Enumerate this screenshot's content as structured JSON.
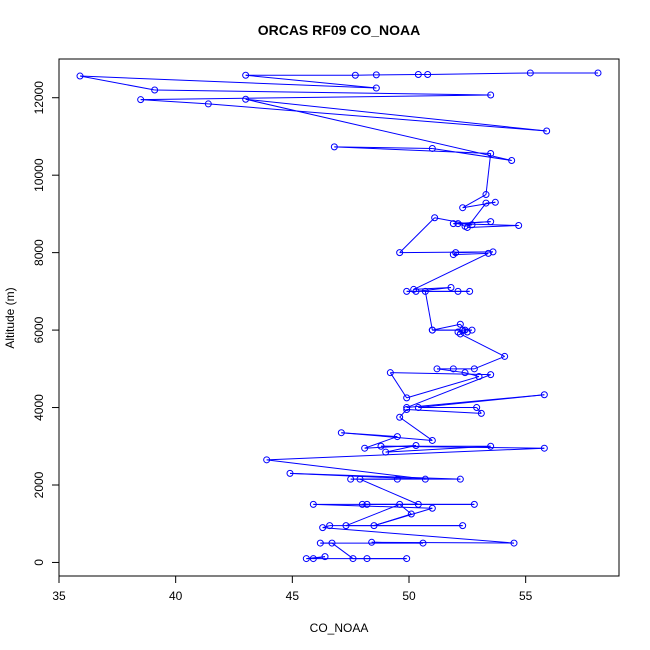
{
  "chart_data": {
    "type": "line",
    "title": "ORCAS RF09 CO_NOAA",
    "xlabel": "CO_NOAA",
    "ylabel": "Altitude (m)",
    "xlim": [
      35,
      59
    ],
    "ylim": [
      -350,
      13000
    ],
    "xticks": [
      35,
      40,
      45,
      50,
      55
    ],
    "yticks": [
      0,
      2000,
      4000,
      6000,
      8000,
      10000,
      12000
    ],
    "grid": false,
    "legend": "none",
    "colors": {
      "series": "#0000ff"
    },
    "series": [
      {
        "marker": "open-circle",
        "x": [
          58.1,
          55.2,
          50.8,
          50.4,
          48.6,
          47.7,
          43.0,
          48.6,
          35.9,
          39.1,
          53.5,
          38.5,
          41.4,
          55.9,
          43.0,
          54.4,
          51.0,
          46.8,
          53.5,
          53.3,
          52.3,
          53.7,
          53.3,
          52.5,
          54.7,
          51.9,
          53.5,
          52.1,
          52.4,
          52.7,
          51.1,
          49.6,
          53.6,
          52.0,
          51.9,
          53.4,
          50.2,
          51.8,
          50.3,
          49.9,
          52.1,
          52.6,
          50.7,
          51.0,
          52.2,
          52.4,
          52.7,
          51.0,
          52.3,
          52.1,
          52.5,
          52.2,
          54.1,
          52.8,
          51.9,
          51.2,
          52.4,
          53.0,
          49.9,
          49.2,
          53.5,
          49.9,
          55.8,
          50.4,
          52.9,
          53.1,
          49.9,
          49.6,
          51.0,
          47.1,
          49.5,
          48.1,
          50.3,
          49.0,
          53.5,
          48.8,
          55.8,
          43.9,
          50.7,
          44.9,
          52.2,
          47.5,
          49.5,
          47.9,
          50.4,
          48.2,
          48.0,
          52.8,
          45.9,
          51.0,
          48.5,
          50.1,
          49.6,
          47.3,
          52.3,
          46.6,
          46.3,
          54.5,
          48.4,
          50.6,
          46.2,
          46.7,
          47.6,
          49.9,
          48.2,
          45.6,
          46.4,
          45.9
        ]
      }
    ]
  }
}
